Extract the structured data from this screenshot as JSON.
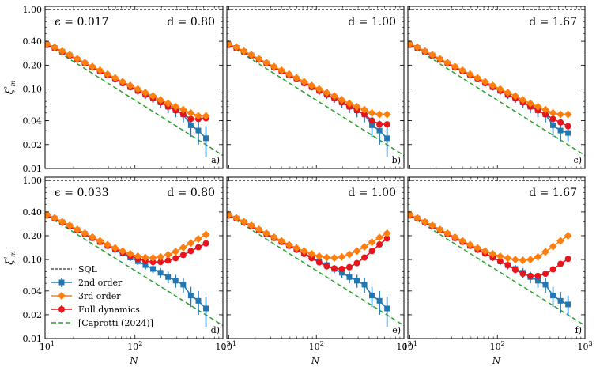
{
  "chart_data": {
    "type": "line",
    "x_scale": "log",
    "y_scale": "log",
    "xlim": [
      9.5,
      1000
    ],
    "ylim": [
      0.01,
      1.1
    ],
    "x_ticks": [
      10,
      100,
      1000
    ],
    "x_tick_labels": [
      "10^1",
      "10^2",
      "10^3"
    ],
    "y_ticks": [
      0.01,
      0.02,
      0.04,
      0.1,
      0.2,
      0.4,
      1.0
    ],
    "y_tick_labels": [
      "0.01",
      "0.02",
      "0.04",
      "0.10",
      "0.20",
      "0.40",
      "1.00"
    ],
    "xlabel": "N",
    "ylabel": "ξ²m",
    "sql_level": 1.0,
    "colors": {
      "sql": "#000000",
      "second": "#1f77b4",
      "third": "#ff7f0e",
      "full": "#e8141b",
      "reference": "#2ca02c"
    },
    "legend": [
      {
        "key": "sql",
        "label": "SQL"
      },
      {
        "key": "second",
        "label": "2nd order"
      },
      {
        "key": "third",
        "label": "3rd order"
      },
      {
        "key": "full",
        "label": "Full dynamics"
      },
      {
        "key": "reference",
        "label": "[Caprotti (2024)]"
      }
    ],
    "legend_panel": 3,
    "reference_line": {
      "x": [
        10,
        1000
      ],
      "y": [
        0.36,
        0.0146
      ]
    },
    "x": [
      10,
      12.2,
      14.9,
      18.1,
      22.1,
      26.9,
      32.8,
      40,
      48.8,
      59.5,
      72.5,
      88.4,
      107.8,
      131.4,
      160.2,
      195.3,
      238.1,
      290.3,
      353.9,
      431.5,
      526.1,
      641.4
    ],
    "panels": [
      {
        "label": "a)",
        "epsilon": "ϵ = 0.017",
        "d": "d = 0.80",
        "second": [
          0.36,
          0.33,
          0.295,
          0.265,
          0.235,
          0.21,
          0.187,
          0.167,
          0.149,
          0.133,
          0.119,
          0.106,
          0.095,
          0.085,
          0.076,
          0.068,
          0.06,
          0.054,
          0.048,
          0.035,
          0.03,
          0.024
        ],
        "second_err": [
          0.02,
          0.02,
          0.02,
          0.018,
          0.016,
          0.015,
          0.013,
          0.012,
          0.011,
          0.011,
          0.01,
          0.01,
          0.01,
          0.01,
          0.009,
          0.01,
          0.01,
          0.01,
          0.01,
          0.01,
          0.01,
          0.01
        ],
        "third": [
          0.37,
          0.336,
          0.3,
          0.27,
          0.24,
          0.215,
          0.192,
          0.172,
          0.154,
          0.138,
          0.124,
          0.111,
          0.1,
          0.09,
          0.082,
          0.073,
          0.066,
          0.06,
          0.055,
          0.05,
          0.046,
          0.046
        ],
        "full": [
          0.36,
          0.33,
          0.295,
          0.265,
          0.235,
          0.21,
          0.187,
          0.167,
          0.149,
          0.133,
          0.119,
          0.106,
          0.095,
          0.085,
          0.076,
          0.068,
          0.06,
          0.054,
          0.048,
          0.042,
          0.042,
          0.043
        ]
      },
      {
        "label": "b)",
        "epsilon": "",
        "d": "d = 1.00",
        "second": [
          0.36,
          0.33,
          0.295,
          0.265,
          0.235,
          0.21,
          0.187,
          0.167,
          0.149,
          0.133,
          0.119,
          0.106,
          0.095,
          0.085,
          0.076,
          0.068,
          0.06,
          0.054,
          0.048,
          0.035,
          0.03,
          0.024
        ],
        "second_err": [
          0.02,
          0.02,
          0.02,
          0.018,
          0.016,
          0.015,
          0.013,
          0.012,
          0.011,
          0.011,
          0.01,
          0.01,
          0.01,
          0.01,
          0.009,
          0.01,
          0.01,
          0.01,
          0.01,
          0.01,
          0.01,
          0.01
        ],
        "third": [
          0.37,
          0.336,
          0.3,
          0.27,
          0.24,
          0.215,
          0.192,
          0.172,
          0.154,
          0.138,
          0.124,
          0.111,
          0.1,
          0.09,
          0.082,
          0.073,
          0.066,
          0.06,
          0.055,
          0.05,
          0.048,
          0.048
        ],
        "full": [
          0.36,
          0.33,
          0.295,
          0.265,
          0.235,
          0.21,
          0.187,
          0.167,
          0.149,
          0.133,
          0.119,
          0.106,
          0.095,
          0.085,
          0.076,
          0.068,
          0.06,
          0.054,
          0.048,
          0.04,
          0.036,
          0.036
        ]
      },
      {
        "label": "c)",
        "epsilon": "",
        "d": "d = 1.67",
        "second": [
          0.36,
          0.33,
          0.295,
          0.265,
          0.235,
          0.21,
          0.187,
          0.167,
          0.149,
          0.133,
          0.119,
          0.106,
          0.095,
          0.085,
          0.076,
          0.068,
          0.06,
          0.054,
          0.048,
          0.035,
          0.03,
          0.028
        ],
        "second_err": [
          0.02,
          0.02,
          0.02,
          0.018,
          0.016,
          0.015,
          0.013,
          0.012,
          0.011,
          0.011,
          0.01,
          0.01,
          0.01,
          0.01,
          0.009,
          0.01,
          0.01,
          0.01,
          0.01,
          0.01,
          0.008,
          0.006
        ],
        "third": [
          0.37,
          0.336,
          0.3,
          0.27,
          0.24,
          0.215,
          0.192,
          0.172,
          0.154,
          0.138,
          0.124,
          0.111,
          0.1,
          0.09,
          0.082,
          0.073,
          0.066,
          0.06,
          0.055,
          0.05,
          0.048,
          0.048
        ],
        "full": [
          0.36,
          0.33,
          0.295,
          0.265,
          0.235,
          0.21,
          0.187,
          0.167,
          0.149,
          0.133,
          0.119,
          0.106,
          0.095,
          0.085,
          0.076,
          0.068,
          0.06,
          0.054,
          0.048,
          0.042,
          0.038,
          0.034
        ]
      },
      {
        "label": "d)",
        "epsilon": "ϵ = 0.033",
        "d": "d = 0.80",
        "second": [
          0.36,
          0.33,
          0.295,
          0.265,
          0.235,
          0.21,
          0.187,
          0.167,
          0.149,
          0.133,
          0.119,
          0.106,
          0.095,
          0.085,
          0.076,
          0.068,
          0.06,
          0.054,
          0.048,
          0.035,
          0.03,
          0.024
        ],
        "second_err": [
          0.02,
          0.02,
          0.02,
          0.018,
          0.016,
          0.015,
          0.013,
          0.012,
          0.011,
          0.011,
          0.01,
          0.01,
          0.01,
          0.01,
          0.009,
          0.01,
          0.01,
          0.01,
          0.01,
          0.01,
          0.01,
          0.01
        ],
        "third": [
          0.37,
          0.336,
          0.3,
          0.27,
          0.24,
          0.215,
          0.192,
          0.172,
          0.154,
          0.14,
          0.128,
          0.118,
          0.11,
          0.106,
          0.105,
          0.108,
          0.115,
          0.126,
          0.142,
          0.161,
          0.182,
          0.207
        ],
        "full": [
          0.36,
          0.33,
          0.295,
          0.265,
          0.235,
          0.21,
          0.187,
          0.167,
          0.149,
          0.135,
          0.122,
          0.111,
          0.102,
          0.096,
          0.093,
          0.093,
          0.097,
          0.104,
          0.114,
          0.128,
          0.143,
          0.16
        ]
      },
      {
        "label": "e)",
        "epsilon": "",
        "d": "d = 1.00",
        "second": [
          0.36,
          0.33,
          0.295,
          0.265,
          0.235,
          0.21,
          0.187,
          0.167,
          0.149,
          0.133,
          0.119,
          0.106,
          0.095,
          0.085,
          0.076,
          0.068,
          0.06,
          0.054,
          0.048,
          0.035,
          0.03,
          0.024
        ],
        "second_err": [
          0.02,
          0.02,
          0.02,
          0.018,
          0.016,
          0.015,
          0.013,
          0.012,
          0.011,
          0.011,
          0.01,
          0.01,
          0.01,
          0.01,
          0.009,
          0.01,
          0.01,
          0.01,
          0.01,
          0.01,
          0.01,
          0.01
        ],
        "third": [
          0.37,
          0.336,
          0.3,
          0.27,
          0.24,
          0.215,
          0.192,
          0.172,
          0.154,
          0.14,
          0.128,
          0.118,
          0.11,
          0.106,
          0.105,
          0.108,
          0.116,
          0.128,
          0.145,
          0.166,
          0.19,
          0.215
        ],
        "full": [
          0.36,
          0.33,
          0.295,
          0.265,
          0.235,
          0.21,
          0.187,
          0.167,
          0.149,
          0.133,
          0.118,
          0.104,
          0.092,
          0.082,
          0.077,
          0.076,
          0.08,
          0.09,
          0.106,
          0.128,
          0.155,
          0.185
        ]
      },
      {
        "label": "f)",
        "epsilon": "",
        "d": "d = 1.67",
        "second": [
          0.36,
          0.33,
          0.295,
          0.265,
          0.235,
          0.21,
          0.187,
          0.167,
          0.149,
          0.133,
          0.119,
          0.106,
          0.095,
          0.085,
          0.076,
          0.068,
          0.06,
          0.054,
          0.048,
          0.035,
          0.03,
          0.027
        ],
        "second_err": [
          0.02,
          0.02,
          0.02,
          0.018,
          0.016,
          0.015,
          0.013,
          0.012,
          0.011,
          0.011,
          0.01,
          0.01,
          0.01,
          0.01,
          0.009,
          0.01,
          0.01,
          0.01,
          0.01,
          0.01,
          0.009,
          0.008
        ],
        "third": [
          0.37,
          0.336,
          0.3,
          0.27,
          0.24,
          0.215,
          0.192,
          0.172,
          0.154,
          0.14,
          0.128,
          0.118,
          0.11,
          0.104,
          0.1,
          0.098,
          0.1,
          0.108,
          0.125,
          0.146,
          0.172,
          0.2
        ],
        "full": [
          0.36,
          0.33,
          0.295,
          0.265,
          0.235,
          0.21,
          0.187,
          0.167,
          0.149,
          0.133,
          0.119,
          0.106,
          0.095,
          0.085,
          0.074,
          0.066,
          0.062,
          0.062,
          0.066,
          0.075,
          0.088,
          0.102
        ]
      }
    ]
  }
}
